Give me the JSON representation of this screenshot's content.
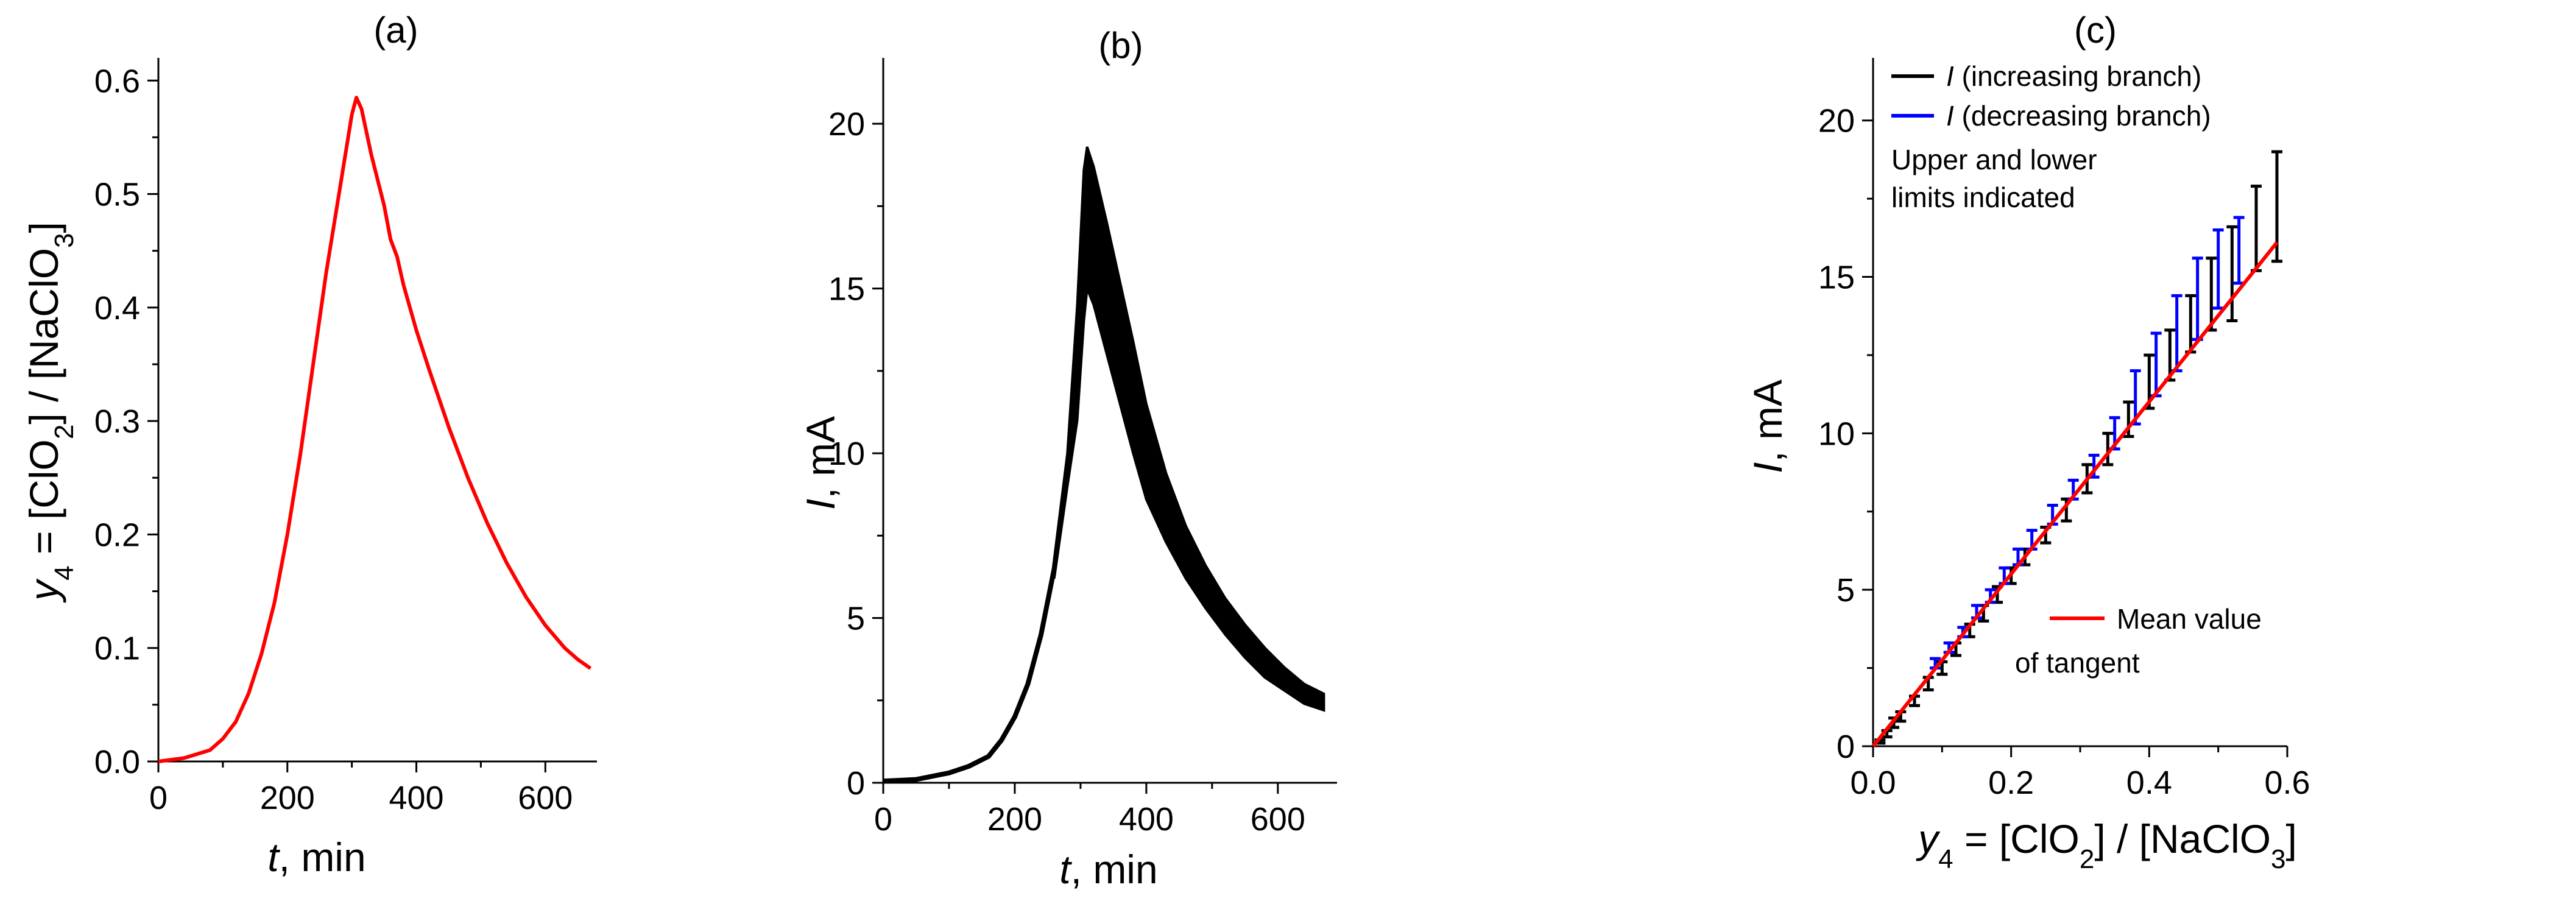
{
  "chart_data": [
    {
      "type": "line",
      "panel_label": "(a)",
      "xlabel_var": "t",
      "xlabel_rest": ", min",
      "ylabel_var": "y",
      "ylabel_sub": "4",
      "ylabel_rest": " = [ClO",
      "ylabel_sub2": "2",
      "ylabel_rest2": "] / [NaClO",
      "ylabel_sub3": "3",
      "ylabel_rest3": "]",
      "xlim": [
        0,
        680
      ],
      "ylim": [
        0,
        0.62
      ],
      "xticks": [
        "0",
        "200",
        "400",
        "600"
      ],
      "xtick_values": [
        0,
        200,
        400,
        600
      ],
      "yticks": [
        "0.0",
        "0.1",
        "0.2",
        "0.3",
        "0.4",
        "0.5",
        "0.6"
      ],
      "ytick_values": [
        0,
        0.1,
        0.2,
        0.3,
        0.4,
        0.5,
        0.6
      ],
      "series": [
        {
          "color": "#ff0000",
          "x": [
            0,
            40,
            80,
            100,
            120,
            140,
            160,
            180,
            200,
            220,
            240,
            260,
            280,
            300,
            307,
            315,
            330,
            350,
            360,
            370,
            380,
            400,
            420,
            450,
            480,
            510,
            540,
            570,
            600,
            630,
            650,
            670
          ],
          "y": [
            0.0,
            0.003,
            0.01,
            0.02,
            0.035,
            0.06,
            0.095,
            0.14,
            0.2,
            0.27,
            0.35,
            0.43,
            0.5,
            0.57,
            0.585,
            0.575,
            0.535,
            0.49,
            0.46,
            0.445,
            0.42,
            0.38,
            0.345,
            0.295,
            0.25,
            0.21,
            0.175,
            0.145,
            0.12,
            0.1,
            0.09,
            0.082
          ]
        }
      ]
    },
    {
      "type": "line",
      "panel_label": "(b)",
      "xlabel_var": "t",
      "xlabel_rest": ", min",
      "ylabel_var": "I",
      "ylabel_rest": ", mA",
      "xlim": [
        0,
        690
      ],
      "ylim": [
        0,
        22
      ],
      "xticks": [
        "0",
        "200",
        "400",
        "600"
      ],
      "xtick_values": [
        0,
        200,
        400,
        600
      ],
      "yticks": [
        "0",
        "5",
        "10",
        "15",
        "20"
      ],
      "ytick_values": [
        0,
        5,
        10,
        15,
        20
      ],
      "series": [
        {
          "color": "#000000",
          "x": [
            0,
            50,
            100,
            130,
            160,
            180,
            200,
            220,
            240,
            260,
            280,
            295,
            305,
            310,
            320,
            340,
            360,
            380,
            400,
            430,
            460,
            490,
            520,
            550,
            580,
            610,
            640,
            670
          ],
          "y": [
            0.05,
            0.1,
            0.3,
            0.5,
            0.8,
            1.3,
            2.0,
            3.0,
            4.5,
            6.5,
            9.5,
            12.5,
            15.5,
            17.0,
            16.0,
            14.3,
            12.8,
            11.2,
            9.8,
            8.3,
            7.1,
            6.1,
            5.2,
            4.4,
            3.7,
            3.2,
            2.8,
            2.5
          ]
        }
      ],
      "noise_band": {
        "x": [
          260,
          280,
          295,
          305,
          310,
          320,
          340,
          360,
          380,
          400,
          430,
          460,
          490,
          520,
          550,
          580,
          610,
          640,
          670
        ],
        "upper": [
          6.8,
          10.0,
          14.5,
          18.6,
          19.3,
          18.7,
          17.0,
          15.2,
          13.4,
          11.5,
          9.4,
          7.8,
          6.6,
          5.6,
          4.8,
          4.1,
          3.5,
          3.0,
          2.7
        ],
        "lower": [
          6.2,
          9.0,
          11.0,
          14.0,
          15.0,
          14.5,
          13.0,
          11.5,
          10.0,
          8.6,
          7.3,
          6.2,
          5.3,
          4.5,
          3.8,
          3.2,
          2.8,
          2.4,
          2.2
        ]
      }
    },
    {
      "type": "scatter",
      "panel_label": "(c)",
      "xlabel_var": "y",
      "xlabel_sub": "4",
      "xlabel_rest": " = [ClO",
      "xlabel_sub2": "2",
      "xlabel_rest2": "] / [NaClO",
      "xlabel_sub3": "3",
      "xlabel_rest3": "]",
      "ylabel_var": "I",
      "ylabel_rest": ", mA",
      "xlim": [
        0,
        0.6
      ],
      "ylim": [
        0,
        22
      ],
      "xticks": [
        "0.0",
        "0.2",
        "0.4",
        "0.6"
      ],
      "xtick_values": [
        0,
        0.2,
        0.4,
        0.6
      ],
      "yticks": [
        "0",
        "5",
        "10",
        "15",
        "20"
      ],
      "ytick_values": [
        0,
        5,
        10,
        15,
        20
      ],
      "legend": [
        {
          "var": "I",
          "rest": " (increasing branch)",
          "color": "#000000"
        },
        {
          "var": "I",
          "rest": " (decreasing branch)",
          "color": "#0000ff"
        }
      ],
      "note_lines": [
        "Upper and lower",
        "limits indicated"
      ],
      "tangent_label_lines": [
        "Mean value",
        "of tangent"
      ],
      "tangent": {
        "color": "#ff0000",
        "x": [
          0,
          0.585
        ],
        "y": [
          0,
          16.1
        ]
      },
      "series": [
        {
          "name": "I (increasing branch)",
          "color": "#000000",
          "x": [
            0.01,
            0.02,
            0.03,
            0.04,
            0.06,
            0.08,
            0.1,
            0.12,
            0.14,
            0.16,
            0.18,
            0.2,
            0.22,
            0.25,
            0.28,
            0.31,
            0.34,
            0.37,
            0.4,
            0.43,
            0.46,
            0.49,
            0.52,
            0.555,
            0.585
          ],
          "low": [
            0.1,
            0.3,
            0.6,
            0.8,
            1.3,
            1.8,
            2.3,
            2.9,
            3.5,
            4.0,
            4.6,
            5.2,
            5.8,
            6.5,
            7.2,
            8.1,
            9.0,
            9.9,
            10.8,
            11.7,
            12.6,
            13.3,
            13.6,
            15.2,
            15.5
          ],
          "high": [
            0.2,
            0.5,
            0.9,
            1.1,
            1.6,
            2.2,
            2.7,
            3.3,
            3.9,
            4.5,
            5.1,
            5.7,
            6.3,
            7.0,
            7.9,
            9.0,
            10.0,
            11.0,
            12.5,
            13.3,
            14.4,
            15.6,
            16.6,
            17.9,
            19.0
          ]
        },
        {
          "name": "I (decreasing branch)",
          "color": "#0000ff",
          "x": [
            0.09,
            0.11,
            0.13,
            0.15,
            0.17,
            0.19,
            0.21,
            0.23,
            0.26,
            0.29,
            0.32,
            0.35,
            0.38,
            0.41,
            0.44,
            0.47,
            0.5,
            0.53
          ],
          "low": [
            2.5,
            3.0,
            3.5,
            4.1,
            4.6,
            5.2,
            5.8,
            6.3,
            7.1,
            7.9,
            8.6,
            9.5,
            10.3,
            11.2,
            12.0,
            13.0,
            14.0,
            14.8
          ],
          "high": [
            2.8,
            3.3,
            3.8,
            4.5,
            5.0,
            5.7,
            6.3,
            6.9,
            7.7,
            8.5,
            9.3,
            10.5,
            12.0,
            13.2,
            14.4,
            15.6,
            16.5,
            16.9
          ]
        }
      ]
    }
  ]
}
